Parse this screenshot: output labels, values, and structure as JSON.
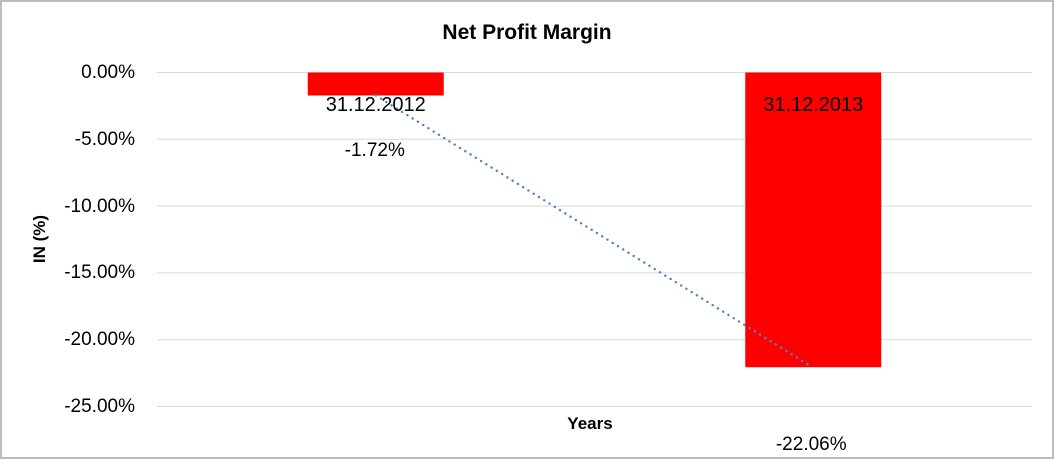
{
  "chart_data": {
    "type": "bar",
    "title": "Net Profit Margin",
    "xlabel": "Years",
    "ylabel": "IN (%)",
    "categories": [
      "31.12.2012",
      "31.12.2013"
    ],
    "values": [
      -1.72,
      -22.06
    ],
    "value_labels": [
      "-1.72%",
      "-22.06%"
    ],
    "ylim": [
      0,
      -25
    ],
    "ytick_step": -5,
    "ytick_labels": [
      "0.00%",
      "-5.00%",
      "-10.00%",
      "-15.00%",
      "-20.00%",
      "-25.00%"
    ],
    "grid": "horizontal-gridlines-on",
    "legend": "none",
    "bar_color": "#FF0000",
    "gridline_color": "#D9D9D9",
    "frame_border_color": "#BDBDBD",
    "trendline": {
      "type": "linear",
      "style": "dotted",
      "color": "#4F87C5",
      "from_point": [
        0,
        -1.72
      ],
      "to_point": [
        1,
        -22.06
      ]
    }
  }
}
